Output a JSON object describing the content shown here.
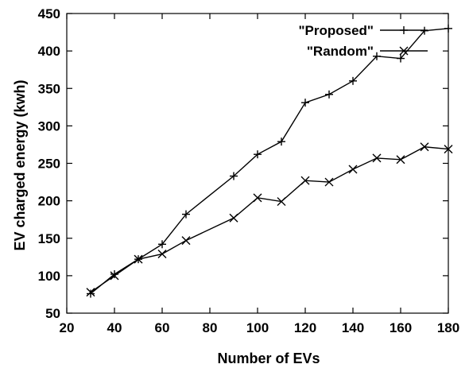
{
  "chart_data": {
    "type": "line",
    "title": "",
    "xlabel": "Number of EVs",
    "ylabel": "EV charged energy (kwh)",
    "xlim": [
      20,
      180
    ],
    "ylim": [
      50,
      450
    ],
    "xticks": [
      20,
      40,
      60,
      80,
      100,
      120,
      140,
      160,
      180
    ],
    "yticks": [
      50,
      100,
      150,
      200,
      250,
      300,
      350,
      400,
      450
    ],
    "grid": false,
    "legend_position": "top-right",
    "series": [
      {
        "name": "\"Proposed\"",
        "marker": "plus",
        "x": [
          30,
          40,
          50,
          60,
          70,
          90,
          100,
          110,
          120,
          130,
          140,
          150,
          160,
          170,
          180
        ],
        "y": [
          76,
          102,
          122,
          142,
          182,
          233,
          262,
          279,
          331,
          342,
          360,
          393,
          390,
          427,
          430
        ]
      },
      {
        "name": "\"Random\"",
        "marker": "cross",
        "x": [
          30,
          40,
          50,
          60,
          70,
          90,
          100,
          110,
          120,
          130,
          140,
          150,
          160,
          170,
          180
        ],
        "y": [
          78,
          100,
          122,
          129,
          147,
          177,
          204,
          199,
          227,
          225,
          242,
          257,
          255,
          272,
          269
        ]
      }
    ]
  }
}
